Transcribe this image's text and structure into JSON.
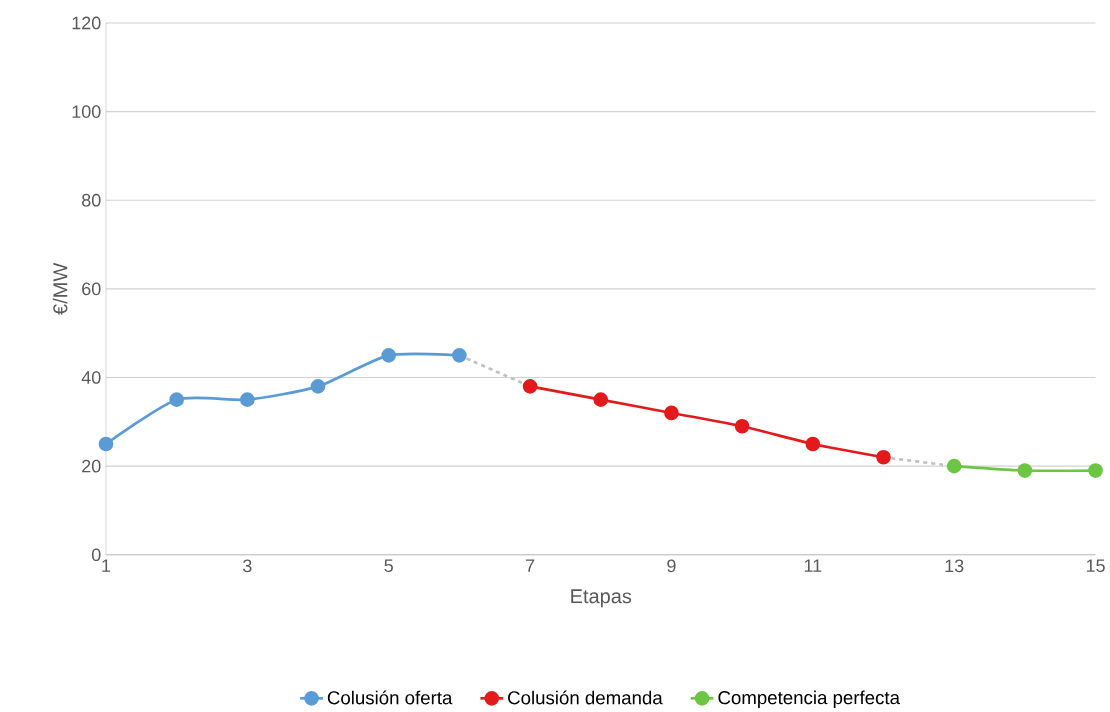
{
  "chart_data": {
    "type": "line",
    "xlabel": "Etapas",
    "ylabel": "€/MW",
    "xlim": [
      1,
      15
    ],
    "xticks": [
      1,
      3,
      5,
      7,
      9,
      11,
      13,
      15
    ],
    "ylim": [
      0,
      120
    ],
    "yticks": [
      0,
      20,
      40,
      60,
      80,
      100,
      120
    ],
    "grid": "y",
    "legend": "bottom",
    "marker": "circle",
    "line_style": "solid",
    "series": [
      {
        "name": "Colusión oferta",
        "color": "#5b9bd5",
        "x": [
          1,
          2,
          3,
          4,
          5,
          6
        ],
        "values": [
          25,
          35,
          35,
          38,
          45,
          45
        ]
      },
      {
        "name": "Colusión demanda",
        "color": "#e31a1c",
        "x": [
          7,
          8,
          9,
          10,
          11,
          12
        ],
        "values": [
          38,
          35,
          32,
          29,
          25,
          22
        ]
      },
      {
        "name": "Competencia perfecta",
        "color": "#6cc644",
        "x": [
          13,
          14,
          15
        ],
        "values": [
          20,
          19,
          19
        ]
      },
      {
        "color": "#c0c0c0",
        "x": [
          6,
          7
        ],
        "values": [
          45,
          38
        ],
        "marker": "none",
        "line_style": "dashed"
      },
      {
        "color": "#c0c0c0",
        "x": [
          12,
          13
        ],
        "values": [
          22,
          20
        ],
        "marker": "none",
        "line_style": "dashed"
      }
    ]
  }
}
